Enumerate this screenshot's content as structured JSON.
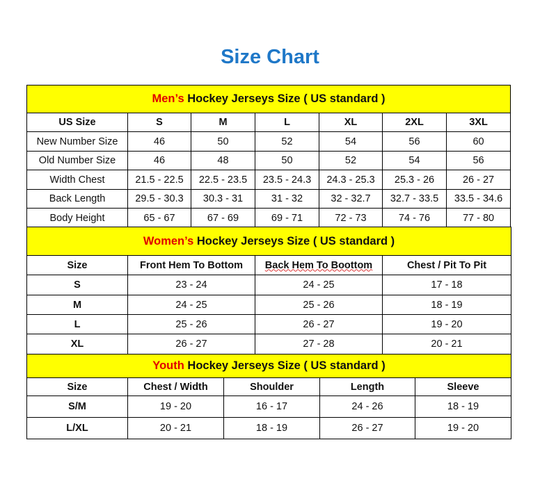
{
  "title": "Size Chart",
  "colors": {
    "title": "#1f78c8",
    "band": "#ffff00",
    "highlight": "#e00000"
  },
  "mens": {
    "highlight": "Men’s",
    "heading": " Hockey Jerseys Size ( US standard )",
    "headers": [
      "US Size",
      "S",
      "M",
      "L",
      "XL",
      "2XL",
      "3XL"
    ],
    "rows": [
      [
        "New Number Size",
        "46",
        "50",
        "52",
        "54",
        "56",
        "60"
      ],
      [
        "Old Number Size",
        "46",
        "48",
        "50",
        "52",
        "54",
        "56"
      ],
      [
        "Width Chest",
        "21.5 - 22.5",
        "22.5 - 23.5",
        "23.5 - 24.3",
        "24.3 - 25.3",
        "25.3 - 26",
        "26 - 27"
      ],
      [
        "Back Length",
        "29.5 - 30.3",
        "30.3 - 31",
        "31 - 32",
        "32 - 32.7",
        "32.7 - 33.5",
        "33.5 - 34.6"
      ],
      [
        "Body Height",
        "65 - 67",
        "67 - 69",
        "69 - 71",
        "72 - 73",
        "74 - 76",
        "77 - 80"
      ]
    ]
  },
  "womens": {
    "highlight": "Women’s",
    "heading": " Hockey Jerseys Size ( US standard )",
    "headers": [
      "Size",
      "Front Hem To Bottom",
      "Back Hem To Boottom",
      "Chest / Pit To Pit"
    ],
    "rows": [
      [
        "S",
        "23 - 24",
        "24 - 25",
        "17 - 18"
      ],
      [
        "M",
        "24 - 25",
        "25 - 26",
        "18 - 19"
      ],
      [
        "L",
        "25 - 26",
        "26 - 27",
        "19 - 20"
      ],
      [
        "XL",
        "26 - 27",
        "27 - 28",
        "20 - 21"
      ]
    ]
  },
  "youth": {
    "highlight": "Youth",
    "heading": " Hockey Jerseys Size ( US standard )",
    "headers": [
      "Size",
      "Chest / Width",
      "Shoulder",
      "Length",
      "Sleeve"
    ],
    "rows": [
      [
        "S/M",
        "19 - 20",
        "16 - 17",
        "24 - 26",
        "18 - 19"
      ],
      [
        "L/XL",
        "20 - 21",
        "18 - 19",
        "26 - 27",
        "19 - 20"
      ]
    ]
  }
}
